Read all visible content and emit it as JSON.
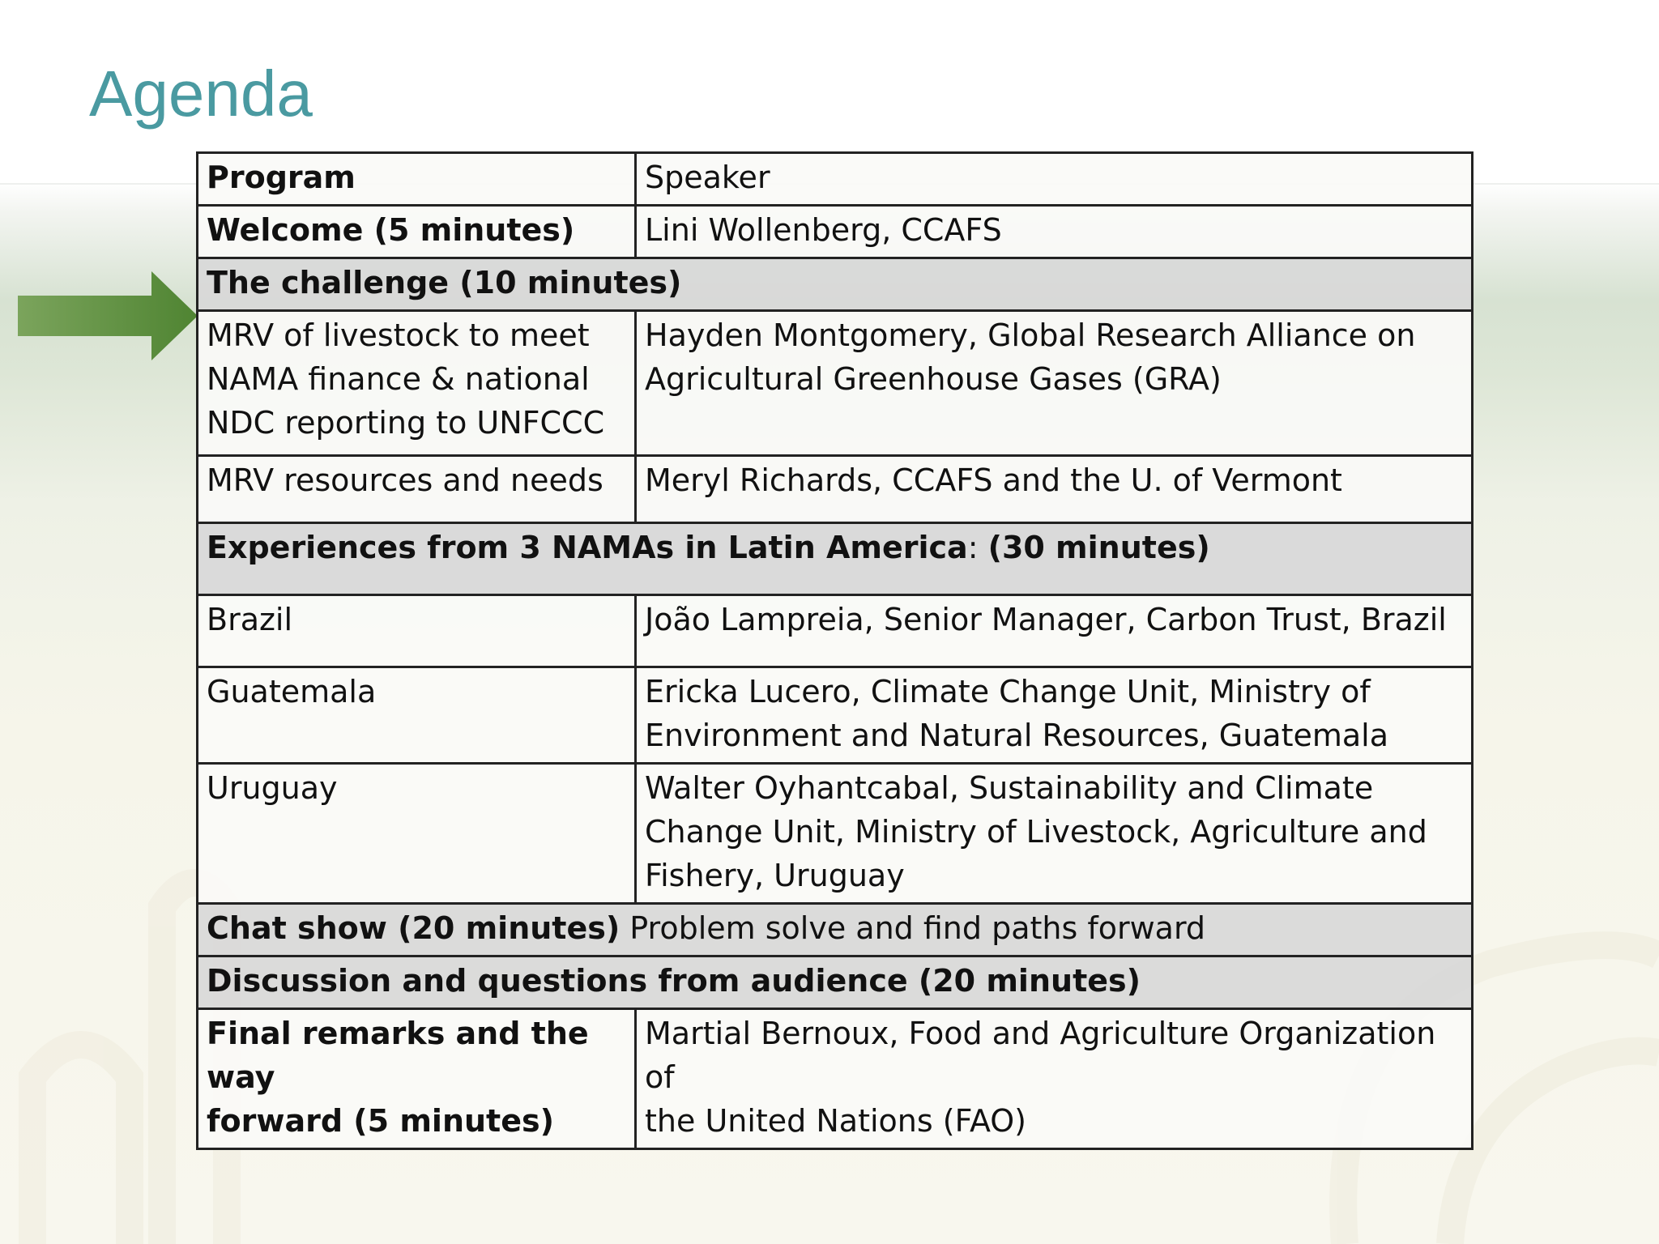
{
  "slide": {
    "title": "Agenda"
  },
  "colors": {
    "title": "#4a9aa1",
    "arrow": "#5c8c3e",
    "highlight_row": "#d8d8d8",
    "border": "#222222"
  },
  "icons": {
    "pointer": "right-arrow-icon"
  },
  "table": {
    "header": {
      "program": "Program",
      "speaker": "Speaker"
    },
    "welcome": {
      "program": "Welcome (5 minutes)",
      "speaker": "Lini Wollenberg, CCAFS"
    },
    "challenge": {
      "label": "The challenge  (10 minutes)"
    },
    "mrv_livestock": {
      "program_lines": [
        "MRV of livestock to meet",
        "NAMA finance & national",
        "NDC reporting to UNFCCC"
      ],
      "speaker_lines": [
        "Hayden Montgomery, Global Research Alliance on",
        "Agricultural Greenhouse Gases (GRA)"
      ]
    },
    "mrv_resources": {
      "program": "MRV resources and needs",
      "speaker": "Meryl Richards, CCAFS and the U. of Vermont"
    },
    "experiences": {
      "bold1": "Experiences from 3 NAMAs in Latin America",
      "normal": ": ",
      "bold2": "(30 minutes)"
    },
    "brazil": {
      "program": "Brazil",
      "speaker": "João Lampreia, Senior Manager, Carbon Trust,  Brazil"
    },
    "guatemala": {
      "program": "Guatemala",
      "speaker_lines": [
        "Ericka Lucero, Climate Change Unit, Ministry of",
        "Environment and Natural Resources, Guatemala"
      ]
    },
    "uruguay": {
      "program": "Uruguay",
      "speaker_lines": [
        "Walter Oyhantcabal, Sustainability and Climate",
        "Change Unit, Ministry of Livestock, Agriculture and",
        "Fishery, Uruguay"
      ]
    },
    "chat_show": {
      "bold": "Chat show (20 minutes)",
      "normal": " Problem solve and find paths forward"
    },
    "discussion": {
      "label": "Discussion and questions from audience (20 minutes)"
    },
    "final": {
      "program_lines": [
        "Final remarks and the way",
        "forward (5 minutes)"
      ],
      "speaker_lines": [
        "Martial Bernoux, Food and Agriculture Organization of",
        "the United Nations (FAO)"
      ]
    }
  }
}
